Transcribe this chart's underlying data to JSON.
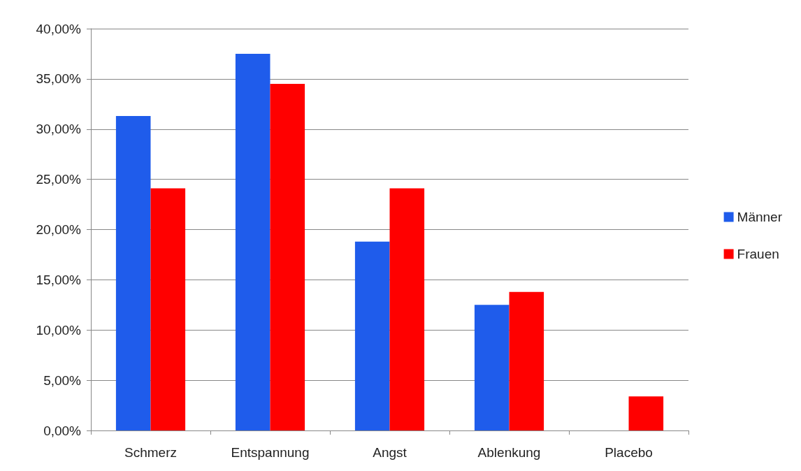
{
  "chart_data": {
    "type": "bar",
    "categories": [
      "Schmerz",
      "Entspannung",
      "Angst",
      "Ablenkung",
      "Placebo"
    ],
    "series": [
      {
        "name": "Männer",
        "color": "#1f5ceb",
        "values": [
          31.3,
          37.5,
          18.8,
          12.5,
          0
        ]
      },
      {
        "name": "Frauen",
        "color": "#ff0000",
        "values": [
          24.1,
          34.5,
          24.1,
          13.8,
          3.4
        ]
      }
    ],
    "ylim": [
      0,
      40
    ],
    "yticks": [
      {
        "value": 0,
        "label": "0,00%"
      },
      {
        "value": 5,
        "label": "5,00%"
      },
      {
        "value": 10,
        "label": "10,00%"
      },
      {
        "value": 15,
        "label": "15,00%"
      },
      {
        "value": 20,
        "label": "20,00%"
      },
      {
        "value": 25,
        "label": "25,00%"
      },
      {
        "value": 30,
        "label": "30,00%"
      },
      {
        "value": 35,
        "label": "35,00%"
      },
      {
        "value": 40,
        "label": "40,00%"
      }
    ],
    "grid": "y",
    "legend": "right"
  }
}
